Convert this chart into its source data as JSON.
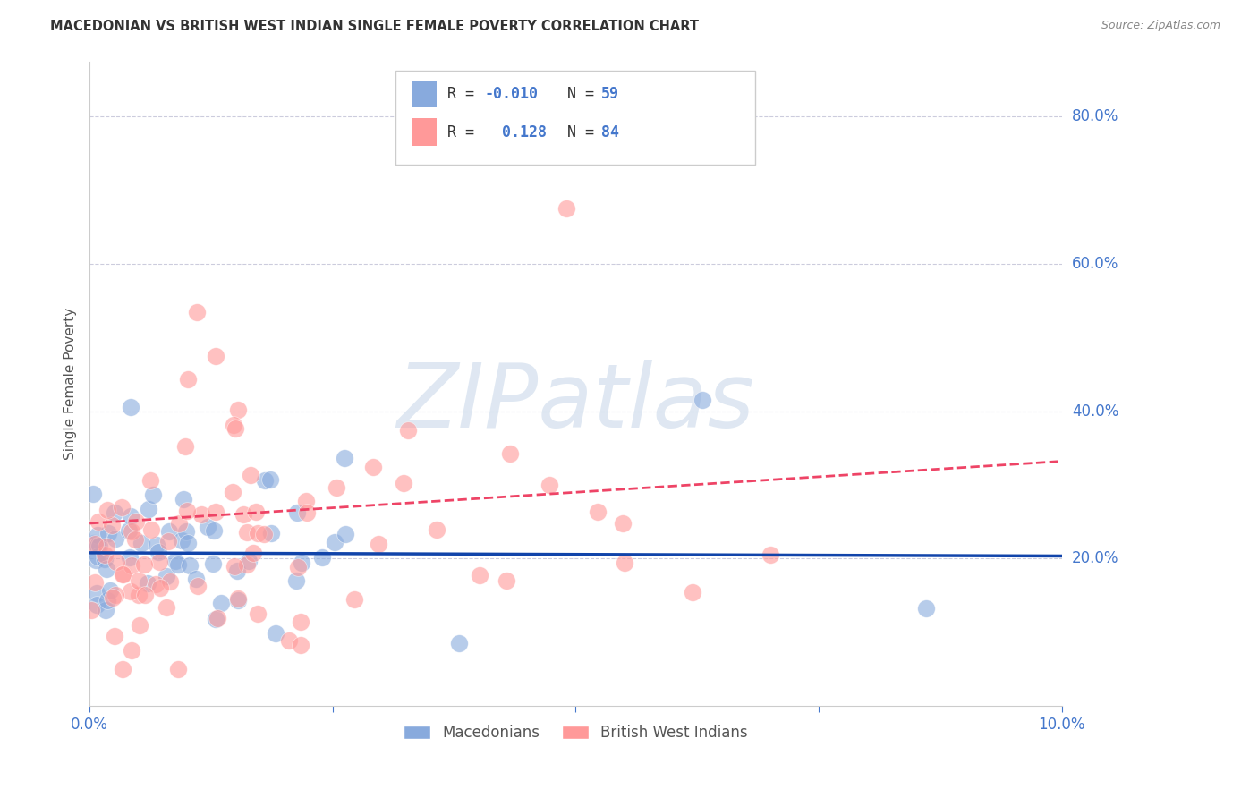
{
  "title": "MACEDONIAN VS BRITISH WEST INDIAN SINGLE FEMALE POVERTY CORRELATION CHART",
  "source": "Source: ZipAtlas.com",
  "ylabel_label": "Single Female Poverty",
  "x_min": 0.0,
  "x_max": 0.1,
  "y_min": 0.0,
  "y_max": 0.875,
  "y_ticks_right": [
    0.2,
    0.4,
    0.6,
    0.8
  ],
  "y_tick_labels_right": [
    "20.0%",
    "40.0%",
    "60.0%",
    "80.0%"
  ],
  "macedonian_R": -0.01,
  "macedonian_N": 59,
  "bwi_R": 0.128,
  "bwi_N": 84,
  "macedonian_color": "#88AADD",
  "bwi_color": "#FF9999",
  "macedonian_trend_color": "#1144AA",
  "bwi_trend_color": "#EE4466",
  "watermark": "ZIPatlas",
  "watermark_color": "#C5D5E8",
  "legend_label_mac": "Macedonians",
  "legend_label_bwi": "British West Indians",
  "background_color": "#FFFFFF",
  "grid_color": "#CCCCDD",
  "title_color": "#333333",
  "source_color": "#888888",
  "axis_color": "#4477CC",
  "ylabel_color": "#555555"
}
